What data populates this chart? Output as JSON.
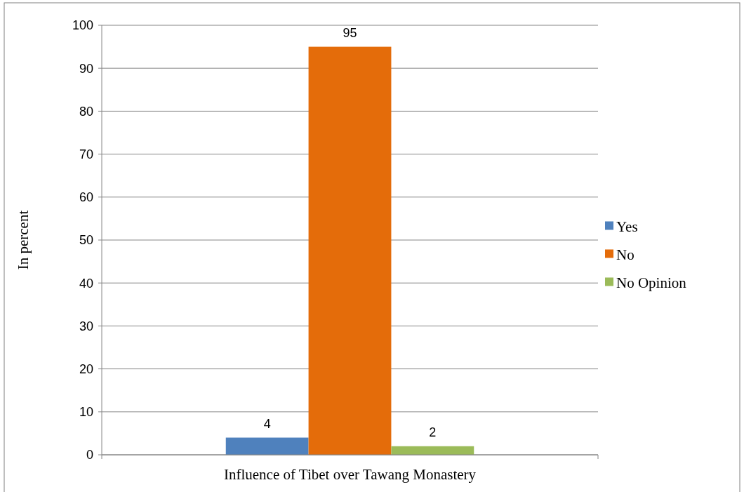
{
  "chart_data": {
    "type": "bar",
    "ylabel": "In percent",
    "categories": [
      "Influence of Tibet over Tawang Monastery"
    ],
    "series": [
      {
        "name": "Yes",
        "color": "#4f81bd",
        "values": [
          4
        ]
      },
      {
        "name": "No",
        "color": "#e46c0a",
        "values": [
          95
        ]
      },
      {
        "name": "No Opinion",
        "color": "#9bbb59",
        "values": [
          2
        ]
      }
    ],
    "ylim": [
      0,
      100
    ],
    "yticks": [
      0,
      10,
      20,
      30,
      40,
      50,
      60,
      70,
      80,
      90,
      100
    ],
    "grid": "y",
    "legend": "right",
    "data_labels": true
  }
}
